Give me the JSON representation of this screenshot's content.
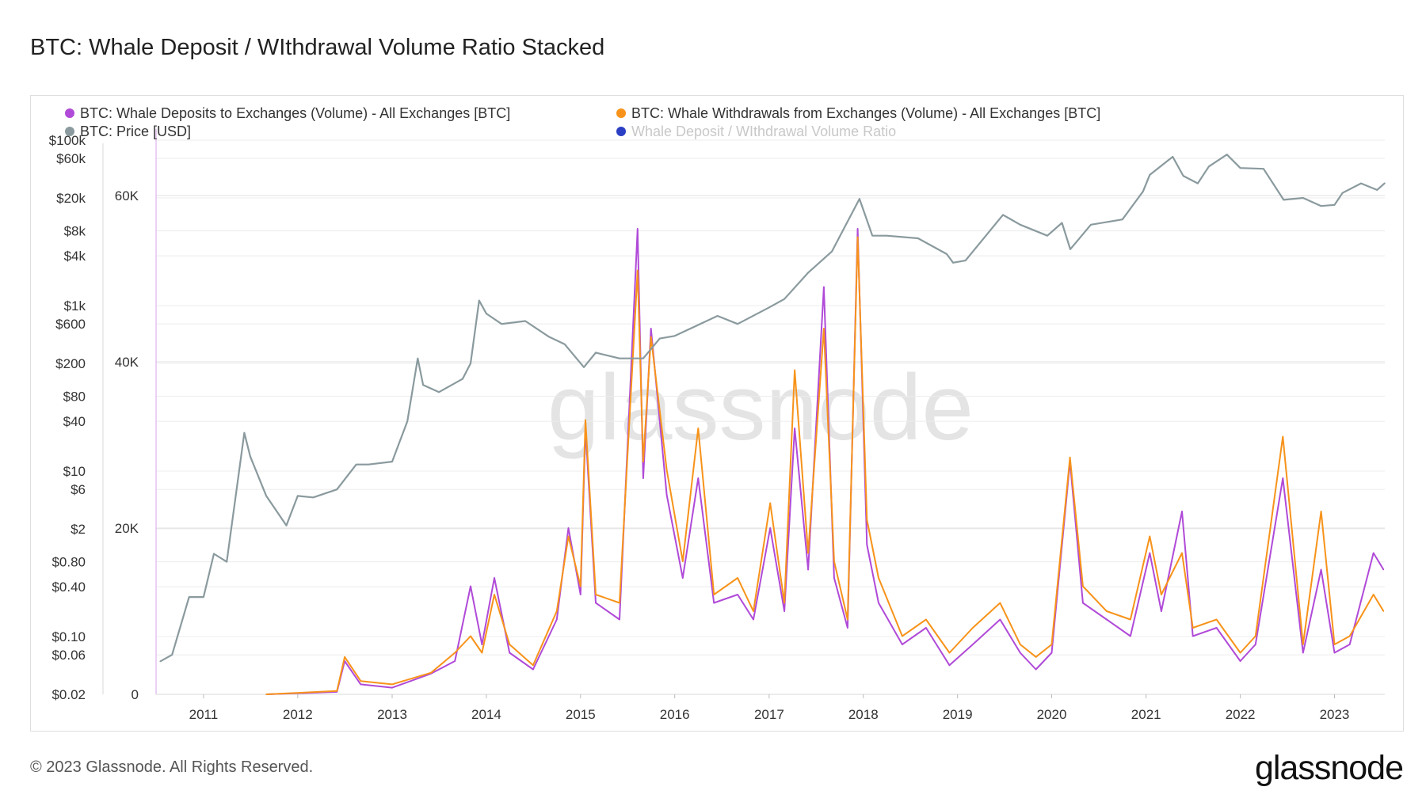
{
  "header": {
    "title": "BTC: Whale Deposit / WIthdrawal Volume Ratio Stacked"
  },
  "footer": {
    "copyright": "© 2023 Glassnode. All Rights Reserved.",
    "brand": "glassnode"
  },
  "watermark": "glassnode",
  "colors": {
    "deposits": "#b04ad8",
    "withdrawals": "#f7931a",
    "price": "#8a9a9e",
    "ratio": "#2b3fc4",
    "grid": "#ececec",
    "axis": "#d8d8d8"
  },
  "chart_data": {
    "type": "line",
    "title": "BTC: Whale Deposit / WIthdrawal Volume Ratio Stacked",
    "legend_position": "top-left",
    "grid": true,
    "x_axis": {
      "type": "date",
      "range": [
        "2010-07-01",
        "2023-07-15"
      ],
      "tick_labels": [
        "2011",
        "2012",
        "2013",
        "2014",
        "2015",
        "2016",
        "2017",
        "2018",
        "2019",
        "2020",
        "2021",
        "2022",
        "2023"
      ]
    },
    "y_axis_volume": {
      "range": [
        0,
        68000
      ],
      "tick_labels": [
        "0",
        "20K",
        "40K",
        "60K"
      ],
      "tick_values": [
        0,
        20000,
        40000,
        60000
      ]
    },
    "y_axis_price": {
      "scale": "log",
      "range": [
        0.02,
        100000
      ],
      "tick_labels": [
        "$0.02",
        "$0.06",
        "$0.10",
        "$0.40",
        "$0.80",
        "$2",
        "$6",
        "$10",
        "$40",
        "$80",
        "$200",
        "$600",
        "$1k",
        "$4k",
        "$8k",
        "$20k",
        "$60k",
        "$100k"
      ],
      "tick_values": [
        0.02,
        0.06,
        0.1,
        0.4,
        0.8,
        2,
        6,
        10,
        40,
        80,
        200,
        600,
        1000,
        4000,
        8000,
        20000,
        60000,
        100000
      ]
    },
    "series": [
      {
        "name": "BTC: Whale Deposits to Exchanges (Volume) - All Exchanges [BTC]",
        "axis": "volume",
        "color": "#b04ad8",
        "points": [
          [
            "2011-09-01",
            0
          ],
          [
            "2012-06-01",
            300
          ],
          [
            "2012-07-01",
            4000
          ],
          [
            "2012-09-01",
            1200
          ],
          [
            "2013-01-01",
            800
          ],
          [
            "2013-06-01",
            2500
          ],
          [
            "2013-09-01",
            4000
          ],
          [
            "2013-11-01",
            13000
          ],
          [
            "2013-12-15",
            6000
          ],
          [
            "2014-02-01",
            14000
          ],
          [
            "2014-04-01",
            5000
          ],
          [
            "2014-07-01",
            3000
          ],
          [
            "2014-10-01",
            9000
          ],
          [
            "2014-11-15",
            20000
          ],
          [
            "2015-01-01",
            12000
          ],
          [
            "2015-01-20",
            32000
          ],
          [
            "2015-03-01",
            11000
          ],
          [
            "2015-06-01",
            9000
          ],
          [
            "2015-08-10",
            56000
          ],
          [
            "2015-09-01",
            26000
          ],
          [
            "2015-10-01",
            44000
          ],
          [
            "2015-12-01",
            24000
          ],
          [
            "2016-02-01",
            14000
          ],
          [
            "2016-04-01",
            26000
          ],
          [
            "2016-06-01",
            11000
          ],
          [
            "2016-09-01",
            12000
          ],
          [
            "2016-11-01",
            9000
          ],
          [
            "2017-01-05",
            20000
          ],
          [
            "2017-03-01",
            10000
          ],
          [
            "2017-04-10",
            32000
          ],
          [
            "2017-06-01",
            15000
          ],
          [
            "2017-08-01",
            49000
          ],
          [
            "2017-09-10",
            14000
          ],
          [
            "2017-11-01",
            8000
          ],
          [
            "2017-12-10",
            56000
          ],
          [
            "2018-01-15",
            18000
          ],
          [
            "2018-03-01",
            11000
          ],
          [
            "2018-06-01",
            6000
          ],
          [
            "2018-09-01",
            8000
          ],
          [
            "2018-12-01",
            3500
          ],
          [
            "2019-03-01",
            6000
          ],
          [
            "2019-06-15",
            9000
          ],
          [
            "2019-09-01",
            5000
          ],
          [
            "2019-11-01",
            3000
          ],
          [
            "2020-01-01",
            5000
          ],
          [
            "2020-03-12",
            28000
          ],
          [
            "2020-05-01",
            11000
          ],
          [
            "2020-08-01",
            9000
          ],
          [
            "2020-11-01",
            7000
          ],
          [
            "2021-01-15",
            17000
          ],
          [
            "2021-03-01",
            10000
          ],
          [
            "2021-05-20",
            22000
          ],
          [
            "2021-07-01",
            7000
          ],
          [
            "2021-10-01",
            8000
          ],
          [
            "2022-01-01",
            4000
          ],
          [
            "2022-03-01",
            6000
          ],
          [
            "2022-06-15",
            26000
          ],
          [
            "2022-09-01",
            5000
          ],
          [
            "2022-11-10",
            15000
          ],
          [
            "2023-01-01",
            5000
          ],
          [
            "2023-03-01",
            6000
          ],
          [
            "2023-06-01",
            17000
          ],
          [
            "2023-07-10",
            15000
          ]
        ]
      },
      {
        "name": "BTC: Whale Withdrawals from Exchanges (Volume) - All Exchanges [BTC]",
        "axis": "volume",
        "color": "#f7931a",
        "points": [
          [
            "2011-09-01",
            0
          ],
          [
            "2012-06-01",
            400
          ],
          [
            "2012-07-01",
            4500
          ],
          [
            "2012-09-01",
            1600
          ],
          [
            "2013-01-01",
            1200
          ],
          [
            "2013-06-01",
            2600
          ],
          [
            "2013-09-01",
            5000
          ],
          [
            "2013-11-01",
            7000
          ],
          [
            "2013-12-15",
            5000
          ],
          [
            "2014-02-01",
            12000
          ],
          [
            "2014-04-01",
            6000
          ],
          [
            "2014-07-01",
            3500
          ],
          [
            "2014-10-01",
            10000
          ],
          [
            "2014-11-15",
            19000
          ],
          [
            "2015-01-01",
            13000
          ],
          [
            "2015-01-20",
            33000
          ],
          [
            "2015-03-01",
            12000
          ],
          [
            "2015-06-01",
            11000
          ],
          [
            "2015-08-10",
            51000
          ],
          [
            "2015-09-01",
            28000
          ],
          [
            "2015-10-01",
            43000
          ],
          [
            "2015-12-01",
            27000
          ],
          [
            "2016-02-01",
            16000
          ],
          [
            "2016-04-01",
            32000
          ],
          [
            "2016-06-01",
            12000
          ],
          [
            "2016-09-01",
            14000
          ],
          [
            "2016-11-01",
            10000
          ],
          [
            "2017-01-05",
            23000
          ],
          [
            "2017-03-01",
            11000
          ],
          [
            "2017-04-10",
            39000
          ],
          [
            "2017-06-01",
            17000
          ],
          [
            "2017-08-01",
            44000
          ],
          [
            "2017-09-10",
            16000
          ],
          [
            "2017-11-01",
            9000
          ],
          [
            "2017-12-10",
            55000
          ],
          [
            "2018-01-15",
            21000
          ],
          [
            "2018-03-01",
            14000
          ],
          [
            "2018-06-01",
            7000
          ],
          [
            "2018-09-01",
            9000
          ],
          [
            "2018-12-01",
            5000
          ],
          [
            "2019-03-01",
            8000
          ],
          [
            "2019-06-15",
            11000
          ],
          [
            "2019-09-01",
            6000
          ],
          [
            "2019-11-01",
            4500
          ],
          [
            "2020-01-01",
            6000
          ],
          [
            "2020-03-12",
            28500
          ],
          [
            "2020-05-01",
            13000
          ],
          [
            "2020-08-01",
            10000
          ],
          [
            "2020-11-01",
            9000
          ],
          [
            "2021-01-15",
            19000
          ],
          [
            "2021-03-01",
            12000
          ],
          [
            "2021-05-20",
            17000
          ],
          [
            "2021-07-01",
            8000
          ],
          [
            "2021-10-01",
            9000
          ],
          [
            "2022-01-01",
            5000
          ],
          [
            "2022-03-01",
            7000
          ],
          [
            "2022-06-15",
            31000
          ],
          [
            "2022-09-01",
            6000
          ],
          [
            "2022-11-10",
            22000
          ],
          [
            "2023-01-01",
            6000
          ],
          [
            "2023-03-01",
            7000
          ],
          [
            "2023-06-01",
            12000
          ],
          [
            "2023-07-10",
            10000
          ]
        ]
      },
      {
        "name": "BTC: Price [USD]",
        "axis": "price",
        "color": "#8a9a9e",
        "points": [
          [
            "2010-07-17",
            0.05
          ],
          [
            "2010-09-01",
            0.06
          ],
          [
            "2010-11-06",
            0.3
          ],
          [
            "2011-01-01",
            0.3
          ],
          [
            "2011-02-10",
            1.0
          ],
          [
            "2011-04-01",
            0.8
          ],
          [
            "2011-06-08",
            29
          ],
          [
            "2011-07-01",
            15
          ],
          [
            "2011-09-01",
            5
          ],
          [
            "2011-11-18",
            2.2
          ],
          [
            "2012-01-01",
            5
          ],
          [
            "2012-03-01",
            4.8
          ],
          [
            "2012-06-01",
            6
          ],
          [
            "2012-08-15",
            12
          ],
          [
            "2012-10-01",
            12
          ],
          [
            "2013-01-01",
            13
          ],
          [
            "2013-03-01",
            40
          ],
          [
            "2013-04-10",
            230
          ],
          [
            "2013-05-01",
            110
          ],
          [
            "2013-07-01",
            90
          ],
          [
            "2013-10-01",
            130
          ],
          [
            "2013-11-01",
            200
          ],
          [
            "2013-12-04",
            1150
          ],
          [
            "2014-01-01",
            800
          ],
          [
            "2014-03-01",
            600
          ],
          [
            "2014-06-01",
            650
          ],
          [
            "2014-09-01",
            420
          ],
          [
            "2014-11-01",
            340
          ],
          [
            "2015-01-14",
            180
          ],
          [
            "2015-03-01",
            270
          ],
          [
            "2015-06-01",
            230
          ],
          [
            "2015-09-01",
            230
          ],
          [
            "2015-11-04",
            400
          ],
          [
            "2016-01-01",
            430
          ],
          [
            "2016-06-15",
            750
          ],
          [
            "2016-09-01",
            600
          ],
          [
            "2017-01-01",
            950
          ],
          [
            "2017-03-01",
            1200
          ],
          [
            "2017-06-01",
            2500
          ],
          [
            "2017-09-01",
            4500
          ],
          [
            "2017-12-17",
            19500
          ],
          [
            "2018-02-05",
            7000
          ],
          [
            "2018-04-01",
            7000
          ],
          [
            "2018-08-01",
            6500
          ],
          [
            "2018-11-20",
            4200
          ],
          [
            "2018-12-15",
            3300
          ],
          [
            "2019-02-01",
            3500
          ],
          [
            "2019-06-26",
            12500
          ],
          [
            "2019-09-01",
            9500
          ],
          [
            "2019-12-15",
            7000
          ],
          [
            "2020-02-10",
            10000
          ],
          [
            "2020-03-13",
            4800
          ],
          [
            "2020-06-01",
            9500
          ],
          [
            "2020-10-01",
            11000
          ],
          [
            "2020-12-20",
            24000
          ],
          [
            "2021-01-15",
            38000
          ],
          [
            "2021-04-14",
            63000
          ],
          [
            "2021-05-25",
            37000
          ],
          [
            "2021-07-20",
            30000
          ],
          [
            "2021-09-01",
            48000
          ],
          [
            "2021-11-10",
            67000
          ],
          [
            "2022-01-01",
            46000
          ],
          [
            "2022-04-01",
            45000
          ],
          [
            "2022-06-18",
            19000
          ],
          [
            "2022-09-01",
            20000
          ],
          [
            "2022-11-10",
            16000
          ],
          [
            "2023-01-01",
            16500
          ],
          [
            "2023-02-01",
            23000
          ],
          [
            "2023-04-14",
            30000
          ],
          [
            "2023-06-15",
            25000
          ],
          [
            "2023-07-15",
            30200
          ]
        ]
      },
      {
        "name": "Whale Deposit / WIthdrawal Volume Ratio",
        "axis": "volume",
        "color": "#2b3fc4",
        "hidden": true,
        "points": []
      }
    ]
  }
}
